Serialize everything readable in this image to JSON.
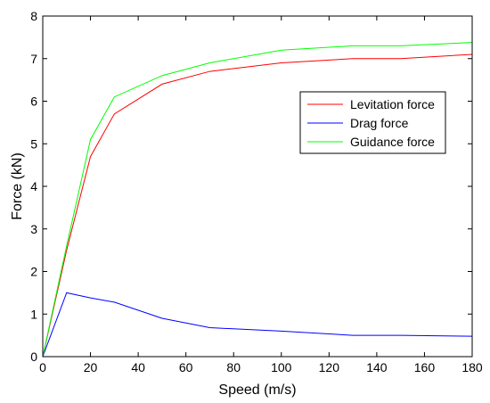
{
  "chart_data": {
    "type": "line",
    "xlabel": "Speed (m/s)",
    "ylabel": "Force (kN)",
    "xlim": [
      0,
      180
    ],
    "ylim": [
      0,
      8
    ],
    "xticks": [
      0,
      20,
      40,
      60,
      80,
      100,
      120,
      140,
      160,
      180
    ],
    "yticks": [
      0,
      1,
      2,
      3,
      4,
      5,
      6,
      7,
      8
    ],
    "grid": false,
    "legend_position": "right",
    "series": [
      {
        "name": "Levitation force",
        "color": "#ff0000",
        "x": [
          0,
          10,
          20,
          30,
          50,
          70,
          100,
          130,
          150,
          180
        ],
        "y": [
          0,
          2.5,
          4.7,
          5.7,
          6.4,
          6.7,
          6.9,
          7.0,
          7.0,
          7.1
        ]
      },
      {
        "name": "Drag force",
        "color": "#0000ff",
        "x": [
          0,
          10,
          20,
          30,
          50,
          70,
          100,
          130,
          150,
          180
        ],
        "y": [
          0,
          1.5,
          1.38,
          1.28,
          0.9,
          0.68,
          0.6,
          0.5,
          0.5,
          0.48
        ]
      },
      {
        "name": "Guidance force",
        "color": "#00ff00",
        "x": [
          0,
          10,
          20,
          30,
          50,
          70,
          100,
          130,
          150,
          180
        ],
        "y": [
          0,
          2.6,
          5.1,
          6.1,
          6.6,
          6.9,
          7.2,
          7.3,
          7.3,
          7.38
        ]
      }
    ]
  }
}
